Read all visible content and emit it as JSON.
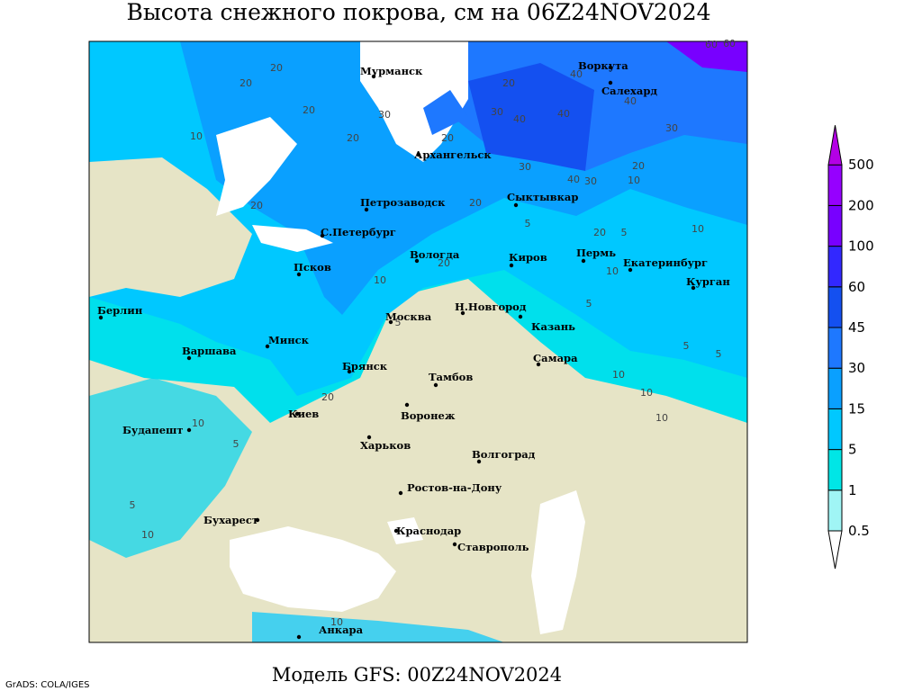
{
  "header": {
    "title": "Высота снежного покрова, см на 06Z24NOV2024"
  },
  "map": {
    "cities": [
      "Мурманск",
      "Воркута",
      "Салехард",
      "Архангельск",
      "Петрозаводск",
      "Сыктывкар",
      "С.Петербург",
      "Вологда",
      "Киров",
      "Пермь",
      "Екатеринбург",
      "Курган",
      "Псков",
      "Берлин",
      "Москва",
      "Н.Новгород",
      "Казань",
      "Минск",
      "Варшава",
      "Самара",
      "Брянск",
      "Тамбов",
      "Киев",
      "Воронеж",
      "Будапешт",
      "Харьков",
      "Волгоград",
      "Ростов-на-Дону",
      "Бухарест",
      "Краснодар",
      "Ставрополь",
      "Анкара"
    ],
    "contour_labels": [
      60,
      60,
      20,
      20,
      40,
      40,
      20,
      30,
      20,
      30,
      40,
      40,
      30,
      10,
      20,
      20,
      20,
      30,
      20,
      40,
      30,
      20,
      20,
      10,
      5,
      10,
      20,
      10,
      5,
      10,
      20,
      5,
      5,
      10,
      5,
      10,
      10,
      10,
      5,
      5,
      5,
      10,
      10
    ]
  },
  "colorbar": {
    "levels": [
      0.5,
      1,
      5,
      15,
      30,
      45,
      60,
      100,
      200,
      500
    ],
    "colors": [
      "#ffffff",
      "#a0f5f5",
      "#00e6e6",
      "#00c8ff",
      "#0aa0ff",
      "#1e78ff",
      "#1450f0",
      "#3228ff",
      "#7800ff",
      "#9600ff",
      "#b400e6"
    ]
  },
  "footer": {
    "model": "Модель GFS: 00Z24NOV2024",
    "credit": "GrADS: COLA/IGES"
  }
}
